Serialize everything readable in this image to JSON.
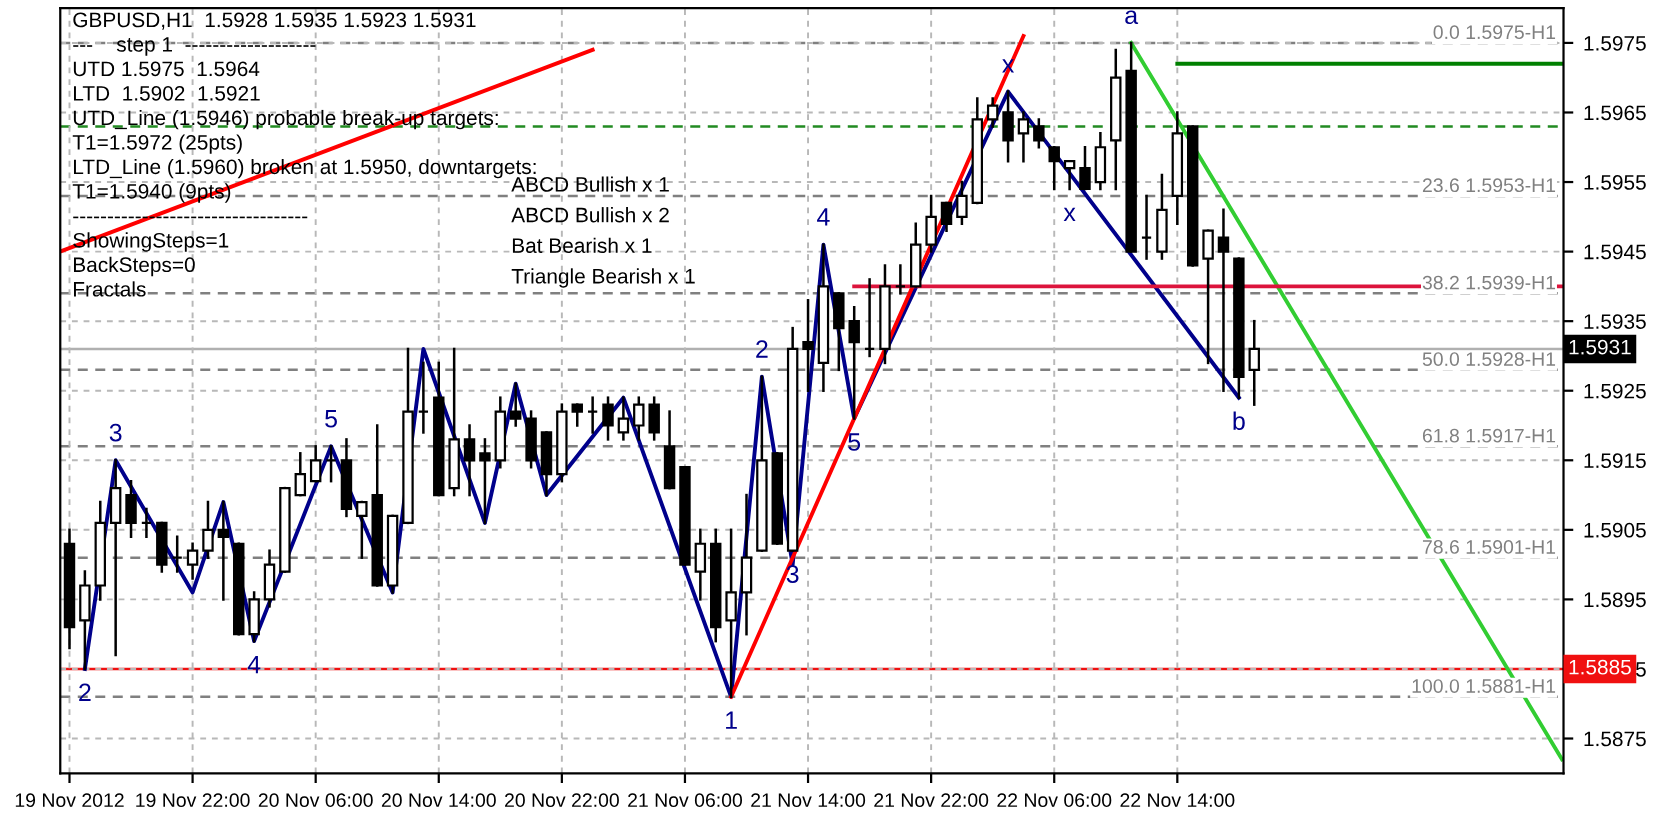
{
  "chart_data": {
    "type": "candlestick",
    "title": "GBPUSD,H1  1.5928 1.5935 1.5923 1.5931",
    "x": [
      "2012-11-19T14:00",
      "2012-11-19T15:00",
      "2012-11-19T16:00",
      "2012-11-19T17:00",
      "2012-11-19T18:00",
      "2012-11-19T19:00",
      "2012-11-19T20:00",
      "2012-11-19T21:00",
      "2012-11-19T22:00",
      "2012-11-19T23:00",
      "2012-11-20T00:00",
      "2012-11-20T01:00",
      "2012-11-20T02:00",
      "2012-11-20T03:00",
      "2012-11-20T04:00",
      "2012-11-20T05:00",
      "2012-11-20T06:00",
      "2012-11-20T07:00",
      "2012-11-20T08:00",
      "2012-11-20T09:00",
      "2012-11-20T10:00",
      "2012-11-20T11:00",
      "2012-11-20T12:00",
      "2012-11-20T13:00",
      "2012-11-20T14:00",
      "2012-11-20T15:00",
      "2012-11-20T16:00",
      "2012-11-20T17:00",
      "2012-11-20T18:00",
      "2012-11-20T19:00",
      "2012-11-20T20:00",
      "2012-11-20T21:00",
      "2012-11-20T22:00",
      "2012-11-20T23:00",
      "2012-11-21T00:00",
      "2012-11-21T01:00",
      "2012-11-21T02:00",
      "2012-11-21T03:00",
      "2012-11-21T04:00",
      "2012-11-21T05:00",
      "2012-11-21T06:00",
      "2012-11-21T07:00",
      "2012-11-21T08:00",
      "2012-11-21T09:00",
      "2012-11-21T10:00",
      "2012-11-21T11:00",
      "2012-11-21T12:00",
      "2012-11-21T13:00",
      "2012-11-21T14:00",
      "2012-11-21T15:00",
      "2012-11-21T16:00",
      "2012-11-21T17:00",
      "2012-11-21T18:00",
      "2012-11-21T19:00",
      "2012-11-21T20:00",
      "2012-11-21T21:00",
      "2012-11-21T22:00",
      "2012-11-21T23:00",
      "2012-11-22T00:00",
      "2012-11-22T01:00",
      "2012-11-22T02:00",
      "2012-11-22T03:00",
      "2012-11-22T04:00",
      "2012-11-22T05:00",
      "2012-11-22T06:00",
      "2012-11-22T07:00",
      "2012-11-22T08:00",
      "2012-11-22T09:00",
      "2012-11-22T10:00",
      "2012-11-22T11:00",
      "2012-11-22T12:00",
      "2012-11-22T13:00",
      "2012-11-22T14:00",
      "2012-11-22T15:00",
      "2012-11-22T16:00",
      "2012-11-22T17:00",
      "2012-11-22T18:00",
      "2012-11-22T19:00"
    ],
    "ohlc": [
      [
        1.5903,
        1.5905,
        1.5888,
        1.5891
      ],
      [
        1.5892,
        1.5899,
        1.5885,
        1.5897
      ],
      [
        1.5897,
        1.5909,
        1.5895,
        1.5906
      ],
      [
        1.5906,
        1.5915,
        1.5887,
        1.5911
      ],
      [
        1.591,
        1.5912,
        1.5904,
        1.5906
      ],
      [
        1.5906,
        1.5908,
        1.5904,
        1.5906
      ],
      [
        1.5906,
        1.5906,
        1.5899,
        1.59
      ],
      [
        1.5901,
        1.5904,
        1.5899,
        1.5901
      ],
      [
        1.59,
        1.5903,
        1.5898,
        1.5902
      ],
      [
        1.5902,
        1.5909,
        1.5901,
        1.5905
      ],
      [
        1.5905,
        1.5909,
        1.5895,
        1.5904
      ],
      [
        1.5903,
        1.5903,
        1.589,
        1.589
      ],
      [
        1.589,
        1.5896,
        1.5889,
        1.5895
      ],
      [
        1.5895,
        1.5902,
        1.5894,
        1.59
      ],
      [
        1.5899,
        1.5911,
        1.5899,
        1.5911
      ],
      [
        1.591,
        1.5916,
        1.591,
        1.5913
      ],
      [
        1.5912,
        1.5917,
        1.5912,
        1.5915
      ],
      [
        1.5915,
        1.5917,
        1.5912,
        1.5915
      ],
      [
        1.5915,
        1.5918,
        1.5907,
        1.5908
      ],
      [
        1.5907,
        1.5909,
        1.5901,
        1.5909
      ],
      [
        1.591,
        1.592,
        1.5897,
        1.5897
      ],
      [
        1.5897,
        1.5907,
        1.5896,
        1.5907
      ],
      [
        1.5906,
        1.5931,
        1.5906,
        1.5922
      ],
      [
        1.5922,
        1.5929,
        1.5919,
        1.5922
      ],
      [
        1.5924,
        1.5929,
        1.591,
        1.591
      ],
      [
        1.5911,
        1.5931,
        1.591,
        1.5918
      ],
      [
        1.5918,
        1.592,
        1.591,
        1.5915
      ],
      [
        1.5916,
        1.5918,
        1.5906,
        1.5915
      ],
      [
        1.5915,
        1.5924,
        1.5914,
        1.5922
      ],
      [
        1.5922,
        1.5926,
        1.592,
        1.5921
      ],
      [
        1.5921,
        1.5922,
        1.5914,
        1.5915
      ],
      [
        1.5919,
        1.5919,
        1.591,
        1.5913
      ],
      [
        1.5913,
        1.5923,
        1.5912,
        1.5922
      ],
      [
        1.5923,
        1.5923,
        1.592,
        1.5922
      ],
      [
        1.5922,
        1.5924,
        1.5919,
        1.5922
      ],
      [
        1.5923,
        1.5924,
        1.5918,
        1.592
      ],
      [
        1.5919,
        1.5924,
        1.5918,
        1.5921
      ],
      [
        1.592,
        1.5924,
        1.5918,
        1.5923
      ],
      [
        1.5923,
        1.5924,
        1.5918,
        1.5919
      ],
      [
        1.5917,
        1.5922,
        1.5911,
        1.5911
      ],
      [
        1.5914,
        1.5914,
        1.59,
        1.59
      ],
      [
        1.5899,
        1.5905,
        1.5895,
        1.5903
      ],
      [
        1.5903,
        1.5905,
        1.5889,
        1.5891
      ],
      [
        1.5892,
        1.5905,
        1.5881,
        1.5896
      ],
      [
        1.5896,
        1.591,
        1.589,
        1.5901
      ],
      [
        1.5902,
        1.5927,
        1.5902,
        1.5915
      ],
      [
        1.5916,
        1.5916,
        1.5903,
        1.5903
      ],
      [
        1.5902,
        1.5934,
        1.5902,
        1.5931
      ],
      [
        1.5932,
        1.5938,
        1.5925,
        1.5931
      ],
      [
        1.5929,
        1.5946,
        1.5925,
        1.594
      ],
      [
        1.5939,
        1.5939,
        1.5928,
        1.5934
      ],
      [
        1.5935,
        1.5937,
        1.5921,
        1.5932
      ],
      [
        1.5931,
        1.5941,
        1.593,
        1.5931
      ],
      [
        1.5931,
        1.5943,
        1.5929,
        1.594
      ],
      [
        1.594,
        1.5943,
        1.5939,
        1.594
      ],
      [
        1.594,
        1.5949,
        1.594,
        1.5946
      ],
      [
        1.5946,
        1.5953,
        1.5945,
        1.595
      ],
      [
        1.5952,
        1.5952,
        1.5948,
        1.5949
      ],
      [
        1.595,
        1.5955,
        1.5949,
        1.5953
      ],
      [
        1.5952,
        1.5967,
        1.5952,
        1.5964
      ],
      [
        1.5964,
        1.5967,
        1.5963,
        1.5966
      ],
      [
        1.5965,
        1.5968,
        1.5958,
        1.5961
      ],
      [
        1.5962,
        1.5965,
        1.5958,
        1.5964
      ],
      [
        1.5963,
        1.5964,
        1.596,
        1.5961
      ],
      [
        1.596,
        1.596,
        1.5954,
        1.5958
      ],
      [
        1.5957,
        1.5958,
        1.5954,
        1.5958
      ],
      [
        1.5957,
        1.596,
        1.5954,
        1.5954
      ],
      [
        1.5955,
        1.5962,
        1.5954,
        1.596
      ],
      [
        1.5961,
        1.5974,
        1.5954,
        1.597
      ],
      [
        1.5971,
        1.5975,
        1.5945,
        1.5945
      ],
      [
        1.5947,
        1.5953,
        1.5944,
        1.5947
      ],
      [
        1.5945,
        1.5956,
        1.5944,
        1.5951
      ],
      [
        1.5953,
        1.5965,
        1.5949,
        1.5962
      ],
      [
        1.5963,
        1.5963,
        1.5943,
        1.5943
      ],
      [
        1.5944,
        1.5948,
        1.5929,
        1.5948
      ],
      [
        1.5947,
        1.5951,
        1.5925,
        1.5945
      ],
      [
        1.5944,
        1.5944,
        1.5924,
        1.5927
      ],
      [
        1.5928,
        1.5935,
        1.5923,
        1.5931
      ]
    ],
    "series": [
      {
        "type": "line",
        "color": "#00008b",
        "x": [
          "2012-11-19T15:00",
          "2012-11-19T17:00",
          "2012-11-19T22:00",
          "2012-11-20T00:00",
          "2012-11-20T02:00",
          "2012-11-20T07:00",
          "2012-11-20T11:00",
          "2012-11-20T13:00",
          "2012-11-20T17:00",
          "2012-11-20T19:00",
          "2012-11-20T21:00",
          "2012-11-21T02:00",
          "2012-11-21T09:00",
          "2012-11-21T11:00",
          "2012-11-21T13:00",
          "2012-11-21T15:00",
          "2012-11-21T17:00",
          "2012-11-22T03:00",
          "2012-11-22T18:00"
        ],
        "values": [
          1.5885,
          1.5915,
          1.5896,
          1.5909,
          1.5889,
          1.5917,
          1.5896,
          1.5931,
          1.5906,
          1.5926,
          1.591,
          1.5924,
          1.5881,
          1.5927,
          1.59,
          1.5946,
          1.5921,
          1.5968,
          1.5924
        ]
      },
      {
        "type": "line",
        "color": "#ff0000",
        "x": [
          "2012-11-19T13:24",
          "2012-11-21T00:00"
        ],
        "values": [
          1.5945,
          1.5974
        ]
      },
      {
        "type": "line",
        "color": "#ff0000",
        "x": [
          "2012-11-21T09:00",
          "2012-11-22T04:00"
        ],
        "values": [
          1.5881,
          1.5976
        ]
      },
      {
        "type": "line",
        "color": "#32cd32",
        "x": [
          "2012-11-22T11:00",
          "2012-11-23T15:00"
        ],
        "values": [
          1.5975,
          1.5872
        ]
      },
      {
        "type": "line",
        "color": "#dc143c",
        "x": [
          "2012-11-21T17:00",
          "2012-11-23T15:00"
        ],
        "values": [
          1.594,
          1.594
        ]
      },
      {
        "type": "line",
        "color": "#008000",
        "x": [
          "2012-11-22T14:00",
          "2012-11-23T15:00"
        ],
        "values": [
          1.5972,
          1.5972
        ]
      }
    ],
    "ref_lines": [
      {
        "axis": "y",
        "value": 1.5975,
        "label": "0.0 1.5975-H1",
        "color": "#808080",
        "line_style": "dashed"
      },
      {
        "axis": "y",
        "value": 1.5953,
        "label": "23.6 1.5953-H1",
        "color": "#808080",
        "line_style": "dashed"
      },
      {
        "axis": "y",
        "value": 1.5939,
        "label": "38.2 1.5939-H1",
        "color": "#808080",
        "line_style": "dashed"
      },
      {
        "axis": "y",
        "value": 1.5928,
        "label": "50.0 1.5928-H1",
        "color": "#808080",
        "line_style": "dashed"
      },
      {
        "axis": "y",
        "value": 1.5917,
        "label": "61.8 1.5917-H1",
        "color": "#808080",
        "line_style": "dashed"
      },
      {
        "axis": "y",
        "value": 1.5901,
        "label": "78.6 1.5901-H1",
        "color": "#808080",
        "line_style": "dashed"
      },
      {
        "axis": "y",
        "value": 1.5881,
        "label": "100.0 1.5881-H1",
        "color": "#808080",
        "line_style": "dashed"
      },
      {
        "axis": "y",
        "value": 1.5963,
        "color": "#228b22",
        "line_style": "dashed"
      },
      {
        "axis": "y",
        "value": 1.5931,
        "label": "1.5931",
        "color": "#b0b0b0",
        "line_style": "solid"
      },
      {
        "axis": "y",
        "value": 1.5885,
        "label": "1.5885",
        "color": "#f01010",
        "line_style": "solid"
      }
    ],
    "annotations": [
      "---    step 1  -------------------",
      "UTD 1.5975  1.5964",
      "LTD  1.5902  1.5921",
      "UTD_Line (1.5946) probable break-up targets:",
      "T1=1.5972 (25pts)",
      "LTD_Line (1.5960) broken at 1.5950, downtargets:",
      "T1=1.5940 (9pts)",
      "----------------------------------",
      "ShowingSteps=1",
      "BackSteps=0",
      "Fractals",
      "ABCD Bullish x 1",
      "ABCD Bullish x 2",
      "Bat Bearish x 1",
      "Triangle Bearish x 1",
      {
        "text": "2",
        "x": "2012-11-19T15:00",
        "y": 1.5885
      },
      {
        "text": "3",
        "x": "2012-11-19T17:00",
        "y": 1.5915
      },
      {
        "text": "4",
        "x": "2012-11-20T02:00",
        "y": 1.5889
      },
      {
        "text": "5",
        "x": "2012-11-20T07:00",
        "y": 1.5917
      },
      {
        "text": "1",
        "x": "2012-11-21T09:00",
        "y": 1.5881
      },
      {
        "text": "2",
        "x": "2012-11-21T11:00",
        "y": 1.5927
      },
      {
        "text": "3",
        "x": "2012-11-21T13:00",
        "y": 1.5902
      },
      {
        "text": "4",
        "x": "2012-11-21T15:00",
        "y": 1.5946
      },
      {
        "text": "5",
        "x": "2012-11-21T17:00",
        "y": 1.5921
      },
      {
        "text": "x",
        "x": "2012-11-22T03:00",
        "y": 1.5968
      },
      {
        "text": "x",
        "x": "2012-11-22T07:00",
        "y": 1.5954
      },
      {
        "text": "a",
        "x": "2012-11-22T11:00",
        "y": 1.5975
      },
      {
        "text": "b",
        "x": "2012-11-22T18:00",
        "y": 1.5924
      }
    ],
    "xlim": [
      "2012-11-19T13:24",
      "2012-11-23T15:06"
    ],
    "xticks": [
      {
        "value": "2012-11-19T14:00",
        "label": "19 Nov 2012"
      },
      {
        "value": "2012-11-19T22:00",
        "label": "19 Nov 22:00"
      },
      {
        "value": "2012-11-20T06:00",
        "label": "20 Nov 06:00"
      },
      {
        "value": "2012-11-20T14:00",
        "label": "20 Nov 14:00"
      },
      {
        "value": "2012-11-20T22:00",
        "label": "20 Nov 22:00"
      },
      {
        "value": "2012-11-21T06:00",
        "label": "21 Nov 06:00"
      },
      {
        "value": "2012-11-21T14:00",
        "label": "21 Nov 14:00"
      },
      {
        "value": "2012-11-21T22:00",
        "label": "21 Nov 22:00"
      },
      {
        "value": "2012-11-22T06:00",
        "label": "22 Nov 06:00"
      },
      {
        "value": "2012-11-22T14:00",
        "label": "22 Nov 14:00"
      }
    ],
    "ylim": [
      1.587,
      1.598
    ],
    "yticks": [
      1.5875,
      1.5885,
      1.5895,
      1.5905,
      1.5915,
      1.5925,
      1.5935,
      1.5945,
      1.5955,
      1.5965,
      1.5975
    ],
    "grid": true
  }
}
